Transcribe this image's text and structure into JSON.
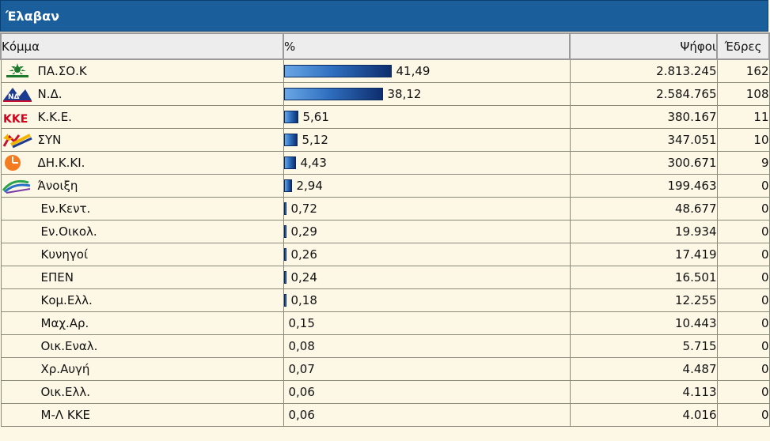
{
  "panel": {
    "title": "Έλαβαν"
  },
  "headers": {
    "party": "Κόμμα",
    "percent": "%",
    "votes": "Ψήφοι",
    "seats": "Έδρες"
  },
  "bar_scale_max_percent": 41.49,
  "rows": [
    {
      "party": "ΠΑ.ΣΟ.Κ",
      "logo": "pasok-logo-icon",
      "percent": "41,49",
      "pct": 41.49,
      "votes": "2.813.245",
      "seats": "162"
    },
    {
      "party": "Ν.Δ.",
      "logo": "nd-logo-icon",
      "percent": "38,12",
      "pct": 38.12,
      "votes": "2.584.765",
      "seats": "108"
    },
    {
      "party": "Κ.Κ.Ε.",
      "logo": "kke-logo-icon",
      "percent": "5,61",
      "pct": 5.61,
      "votes": "380.167",
      "seats": "11"
    },
    {
      "party": "ΣΥΝ",
      "logo": "syn-logo-icon",
      "percent": "5,12",
      "pct": 5.12,
      "votes": "347.051",
      "seats": "10"
    },
    {
      "party": "ΔΗ.Κ.ΚΙ.",
      "logo": "dikki-logo-icon",
      "percent": "4,43",
      "pct": 4.43,
      "votes": "300.671",
      "seats": "9"
    },
    {
      "party": "Άνοιξη",
      "logo": "anoixi-logo-icon",
      "percent": "2,94",
      "pct": 2.94,
      "votes": "199.463",
      "seats": "0"
    },
    {
      "party": "Εν.Κεντ.",
      "logo": "",
      "percent": "0,72",
      "pct": 0.72,
      "votes": "48.677",
      "seats": "0"
    },
    {
      "party": "Εν.Οικολ.",
      "logo": "",
      "percent": "0,29",
      "pct": 0.29,
      "votes": "19.934",
      "seats": "0"
    },
    {
      "party": "Κυνηγοί",
      "logo": "",
      "percent": "0,26",
      "pct": 0.26,
      "votes": "17.419",
      "seats": "0"
    },
    {
      "party": "ΕΠΕΝ",
      "logo": "",
      "percent": "0,24",
      "pct": 0.24,
      "votes": "16.501",
      "seats": "0"
    },
    {
      "party": "Κομ.Ελλ.",
      "logo": "",
      "percent": "0,18",
      "pct": 0.18,
      "votes": "12.255",
      "seats": "0"
    },
    {
      "party": "Μαχ.Αρ.",
      "logo": "",
      "percent": "0,15",
      "pct": 0.15,
      "votes": "10.443",
      "seats": "0"
    },
    {
      "party": "Οικ.Εναλ.",
      "logo": "",
      "percent": "0,08",
      "pct": 0.08,
      "votes": "5.715",
      "seats": "0"
    },
    {
      "party": "Χρ.Αυγή",
      "logo": "",
      "percent": "0,07",
      "pct": 0.07,
      "votes": "4.487",
      "seats": "0"
    },
    {
      "party": "Οικ.Ελλ.",
      "logo": "",
      "percent": "0,06",
      "pct": 0.06,
      "votes": "4.113",
      "seats": "0"
    },
    {
      "party": "Μ-Λ ΚΚΕ",
      "logo": "",
      "percent": "0,06",
      "pct": 0.06,
      "votes": "4.016",
      "seats": "0"
    }
  ]
}
